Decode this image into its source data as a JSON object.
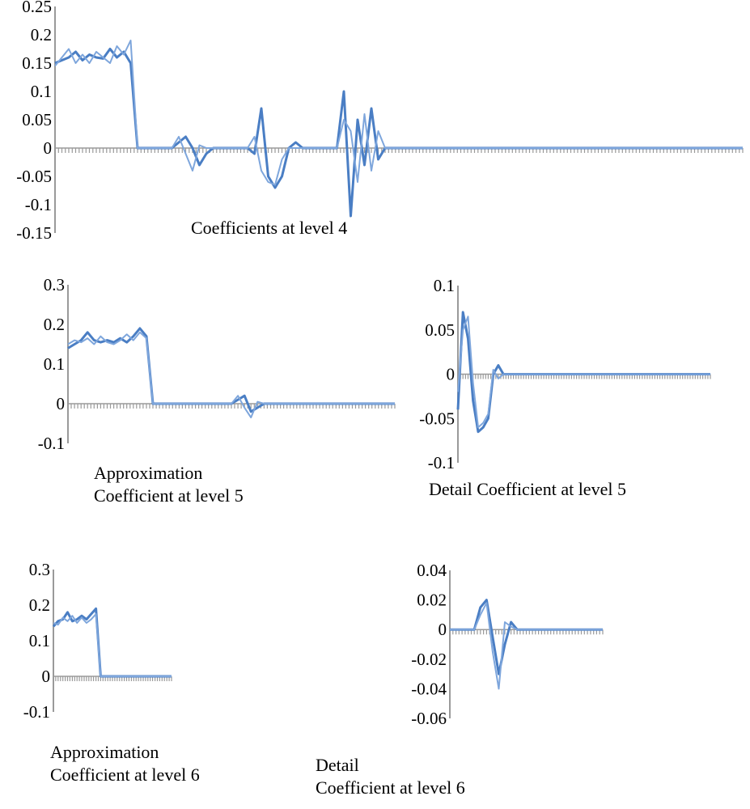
{
  "chart_data": [
    {
      "type": "line",
      "title": "Coefficients at level 4",
      "ylim": [
        -0.15,
        0.25
      ],
      "yticks": [
        "0.25",
        "0.2",
        "0.15",
        "0.1",
        "0.05",
        "0",
        "-0.05",
        "-0.1",
        "-0.15"
      ],
      "tick_values": [
        0.25,
        0.2,
        0.15,
        0.1,
        0.05,
        0,
        -0.05,
        -0.1,
        -0.15
      ],
      "x_count": 200,
      "series": [
        {
          "values": [
            [
              0,
              0.15
            ],
            [
              2,
              0.155
            ],
            [
              4,
              0.16
            ],
            [
              6,
              0.17
            ],
            [
              8,
              0.155
            ],
            [
              10,
              0.165
            ],
            [
              12,
              0.16
            ],
            [
              14,
              0.158
            ],
            [
              16,
              0.175
            ],
            [
              18,
              0.16
            ],
            [
              20,
              0.17
            ],
            [
              22,
              0.15
            ],
            [
              24,
              0.0
            ],
            [
              34,
              0.0
            ],
            [
              36,
              0.01
            ],
            [
              38,
              0.02
            ],
            [
              40,
              0.0
            ],
            [
              42,
              -0.03
            ],
            [
              44,
              -0.01
            ],
            [
              46,
              0.0
            ],
            [
              56,
              0.0
            ],
            [
              58,
              -0.01
            ],
            [
              60,
              0.07
            ],
            [
              62,
              -0.05
            ],
            [
              64,
              -0.07
            ],
            [
              66,
              -0.05
            ],
            [
              68,
              0.0
            ],
            [
              70,
              0.01
            ],
            [
              72,
              0.0
            ],
            [
              82,
              0.0
            ],
            [
              84,
              0.1
            ],
            [
              86,
              -0.12
            ],
            [
              88,
              0.05
            ],
            [
              90,
              -0.03
            ],
            [
              92,
              0.07
            ],
            [
              94,
              -0.02
            ],
            [
              96,
              0.0
            ],
            [
              200,
              0.0
            ]
          ]
        },
        {
          "values": [
            [
              0,
              0.145
            ],
            [
              2,
              0.16
            ],
            [
              4,
              0.175
            ],
            [
              6,
              0.15
            ],
            [
              8,
              0.165
            ],
            [
              10,
              0.15
            ],
            [
              12,
              0.17
            ],
            [
              14,
              0.16
            ],
            [
              16,
              0.15
            ],
            [
              18,
              0.18
            ],
            [
              20,
              0.165
            ],
            [
              22,
              0.19
            ],
            [
              24,
              0.0
            ],
            [
              34,
              0.0
            ],
            [
              36,
              0.02
            ],
            [
              38,
              -0.01
            ],
            [
              40,
              -0.04
            ],
            [
              42,
              0.005
            ],
            [
              44,
              0.0
            ],
            [
              56,
              0.0
            ],
            [
              58,
              0.02
            ],
            [
              60,
              -0.04
            ],
            [
              62,
              -0.06
            ],
            [
              64,
              -0.065
            ],
            [
              66,
              -0.02
            ],
            [
              68,
              0.0
            ],
            [
              82,
              0.0
            ],
            [
              84,
              0.05
            ],
            [
              86,
              0.03
            ],
            [
              88,
              -0.06
            ],
            [
              90,
              0.06
            ],
            [
              92,
              -0.04
            ],
            [
              94,
              0.03
            ],
            [
              96,
              0.0
            ],
            [
              200,
              0.0
            ]
          ]
        }
      ]
    },
    {
      "type": "line",
      "title": "Approximation Coefficient at level 5",
      "title_lines": [
        "Approximation",
        "Coefficient at level 5"
      ],
      "ylim": [
        -0.1,
        0.3
      ],
      "yticks": [
        "0.3",
        "0.2",
        "0.1",
        "0",
        "-0.1"
      ],
      "tick_values": [
        0.3,
        0.2,
        0.1,
        0,
        -0.1
      ],
      "x_count": 100,
      "series": [
        {
          "values": [
            [
              0,
              0.14
            ],
            [
              2,
              0.15
            ],
            [
              4,
              0.16
            ],
            [
              6,
              0.18
            ],
            [
              8,
              0.16
            ],
            [
              10,
              0.155
            ],
            [
              12,
              0.16
            ],
            [
              14,
              0.155
            ],
            [
              16,
              0.165
            ],
            [
              18,
              0.155
            ],
            [
              20,
              0.17
            ],
            [
              22,
              0.19
            ],
            [
              24,
              0.17
            ],
            [
              26,
              0.0
            ],
            [
              50,
              0.0
            ],
            [
              52,
              0.01
            ],
            [
              54,
              0.02
            ],
            [
              56,
              -0.02
            ],
            [
              58,
              -0.01
            ],
            [
              60,
              0.0
            ],
            [
              100,
              0.0
            ]
          ]
        },
        {
          "values": [
            [
              0,
              0.15
            ],
            [
              2,
              0.16
            ],
            [
              4,
              0.155
            ],
            [
              6,
              0.165
            ],
            [
              8,
              0.15
            ],
            [
              10,
              0.17
            ],
            [
              12,
              0.155
            ],
            [
              14,
              0.15
            ],
            [
              16,
              0.16
            ],
            [
              18,
              0.175
            ],
            [
              20,
              0.16
            ],
            [
              22,
              0.18
            ],
            [
              24,
              0.165
            ],
            [
              26,
              0.0
            ],
            [
              50,
              0.0
            ],
            [
              52,
              0.02
            ],
            [
              54,
              -0.01
            ],
            [
              56,
              -0.035
            ],
            [
              58,
              0.005
            ],
            [
              60,
              0.0
            ],
            [
              100,
              0.0
            ]
          ]
        }
      ]
    },
    {
      "type": "line",
      "title": "Detail Coefficient at level 5",
      "ylim": [
        -0.1,
        0.1
      ],
      "yticks": [
        "0.1",
        "0.05",
        "0",
        "-0.05",
        "-0.1"
      ],
      "tick_values": [
        0.1,
        0.05,
        0,
        -0.05,
        -0.1
      ],
      "x_count": 100,
      "series": [
        {
          "values": [
            [
              0,
              -0.04
            ],
            [
              2,
              0.07
            ],
            [
              4,
              0.04
            ],
            [
              6,
              -0.03
            ],
            [
              8,
              -0.065
            ],
            [
              10,
              -0.06
            ],
            [
              12,
              -0.05
            ],
            [
              14,
              0.0
            ],
            [
              16,
              0.01
            ],
            [
              18,
              0.0
            ],
            [
              100,
              0.0
            ]
          ]
        },
        {
          "values": [
            [
              0,
              -0.02
            ],
            [
              2,
              0.05
            ],
            [
              4,
              0.065
            ],
            [
              6,
              -0.01
            ],
            [
              8,
              -0.06
            ],
            [
              10,
              -0.055
            ],
            [
              12,
              -0.045
            ],
            [
              14,
              0.005
            ],
            [
              16,
              -0.005
            ],
            [
              18,
              0.0
            ],
            [
              100,
              0.0
            ]
          ]
        }
      ]
    },
    {
      "type": "line",
      "title": "Approximation Coefficient at level 6",
      "title_lines": [
        "Approximation",
        "Coefficient at level  6"
      ],
      "ylim": [
        -0.1,
        0.3
      ],
      "yticks": [
        "0.3",
        "0.2",
        "0.1",
        "0",
        "-0.1"
      ],
      "tick_values": [
        0.3,
        0.2,
        0.1,
        0,
        -0.1
      ],
      "x_count": 50,
      "series": [
        {
          "values": [
            [
              0,
              0.14
            ],
            [
              2,
              0.155
            ],
            [
              4,
              0.16
            ],
            [
              6,
              0.18
            ],
            [
              8,
              0.155
            ],
            [
              10,
              0.16
            ],
            [
              12,
              0.17
            ],
            [
              14,
              0.16
            ],
            [
              16,
              0.175
            ],
            [
              18,
              0.19
            ],
            [
              20,
              0.0
            ],
            [
              50,
              0.0
            ]
          ]
        },
        {
          "values": [
            [
              0,
              0.15
            ],
            [
              2,
              0.145
            ],
            [
              4,
              0.165
            ],
            [
              6,
              0.155
            ],
            [
              8,
              0.17
            ],
            [
              10,
              0.15
            ],
            [
              12,
              0.165
            ],
            [
              14,
              0.15
            ],
            [
              16,
              0.16
            ],
            [
              18,
              0.175
            ],
            [
              20,
              0.0
            ],
            [
              50,
              0.0
            ]
          ]
        }
      ]
    },
    {
      "type": "line",
      "title": "Detail Coefficient at level 6",
      "title_lines": [
        "Detail",
        "Coefficient at level 6"
      ],
      "ylim": [
        -0.06,
        0.04
      ],
      "yticks": [
        "0.04",
        "0.02",
        "0",
        "-0.02",
        "-0.04",
        "-0.06"
      ],
      "tick_values": [
        0.04,
        0.02,
        0,
        -0.02,
        -0.04,
        -0.06
      ],
      "x_count": 50,
      "series": [
        {
          "values": [
            [
              0,
              0.0
            ],
            [
              8,
              0.0
            ],
            [
              10,
              0.015
            ],
            [
              12,
              0.02
            ],
            [
              14,
              -0.005
            ],
            [
              16,
              -0.03
            ],
            [
              18,
              -0.01
            ],
            [
              20,
              0.005
            ],
            [
              22,
              0.0
            ],
            [
              50,
              0.0
            ]
          ]
        },
        {
          "values": [
            [
              0,
              0.0
            ],
            [
              8,
              0.0
            ],
            [
              10,
              0.01
            ],
            [
              12,
              0.018
            ],
            [
              14,
              -0.015
            ],
            [
              16,
              -0.04
            ],
            [
              18,
              0.005
            ],
            [
              20,
              0.002
            ],
            [
              22,
              0.0
            ],
            [
              50,
              0.0
            ]
          ]
        }
      ]
    }
  ],
  "colors": {
    "line": "#4a7ec4",
    "line_light": "#7ea6dc",
    "axis": "#9a9a9a",
    "text": "#000000"
  }
}
